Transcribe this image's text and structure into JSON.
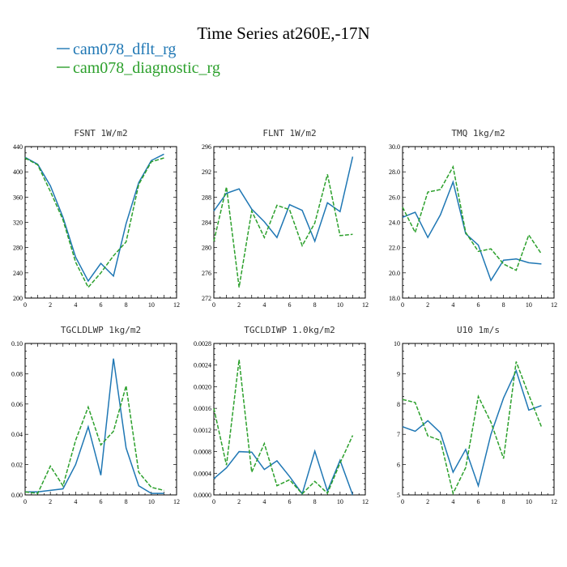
{
  "title": "Time Series at260E,-17N",
  "legend": [
    {
      "label": "cam078_dflt_rg",
      "color": "#1f77b4",
      "dash": "solid"
    },
    {
      "label": "cam078_diagnostic_rg",
      "color": "#2ca02c",
      "dash": "dashed"
    }
  ],
  "chart_data": [
    {
      "type": "line",
      "title": "FSNT  1W/m2",
      "x": [
        0,
        1,
        2,
        3,
        4,
        5,
        6,
        7,
        8,
        9,
        10,
        11
      ],
      "xlim": [
        0,
        12
      ],
      "xticks": [
        0,
        2,
        4,
        6,
        8,
        10,
        12
      ],
      "ylim": [
        200,
        440
      ],
      "yticks": [
        200,
        240,
        280,
        320,
        360,
        400,
        440
      ],
      "ytick_labels": [
        "200",
        "240",
        "280",
        "320",
        "360",
        "400",
        "440"
      ],
      "series": [
        {
          "name": "cam078_dflt_rg",
          "values": [
            423,
            412,
            378,
            328,
            265,
            227,
            255,
            235,
            318,
            383,
            418,
            428
          ]
        },
        {
          "name": "cam078_diagnostic_rg",
          "values": [
            422,
            411,
            369,
            324,
            257,
            217,
            240,
            267,
            289,
            380,
            416,
            422
          ]
        }
      ]
    },
    {
      "type": "line",
      "title": "FLNT  1W/m2",
      "x": [
        0,
        1,
        2,
        3,
        4,
        5,
        6,
        7,
        8,
        9,
        10,
        11
      ],
      "xlim": [
        0,
        12
      ],
      "xticks": [
        0,
        2,
        4,
        6,
        8,
        10,
        12
      ],
      "ylim": [
        272,
        296
      ],
      "yticks": [
        272,
        276,
        280,
        284,
        288,
        292,
        296
      ],
      "ytick_labels": [
        "272",
        "276",
        "280",
        "284",
        "288",
        "292",
        "296"
      ],
      "series": [
        {
          "name": "cam078_dflt_rg",
          "values": [
            285.8,
            288.6,
            289.3,
            286.1,
            284.1,
            281.6,
            286.8,
            285.9,
            281.0,
            287.1,
            285.7,
            294.4
          ]
        },
        {
          "name": "cam078_diagnostic_rg",
          "values": [
            281.0,
            289.6,
            273.7,
            285.8,
            281.6,
            286.7,
            286.0,
            280.3,
            283.9,
            291.6,
            281.9,
            282.1
          ]
        }
      ]
    },
    {
      "type": "line",
      "title": "TMQ  1kg/m2",
      "x": [
        0,
        1,
        2,
        3,
        4,
        5,
        6,
        7,
        8,
        9,
        10,
        11
      ],
      "xlim": [
        0,
        12
      ],
      "xticks": [
        0,
        2,
        4,
        6,
        8,
        10,
        12
      ],
      "ylim": [
        18,
        30
      ],
      "yticks": [
        18,
        20,
        22,
        24,
        26,
        28,
        30
      ],
      "ytick_labels": [
        "18.0",
        "20.0",
        "22.0",
        "24.0",
        "26.0",
        "28.0",
        "30.0"
      ],
      "series": [
        {
          "name": "cam078_dflt_rg",
          "values": [
            24.4,
            24.8,
            22.8,
            24.6,
            27.2,
            23.1,
            22.2,
            19.4,
            21.0,
            21.1,
            20.8,
            20.7
          ]
        },
        {
          "name": "cam078_diagnostic_rg",
          "values": [
            25.2,
            23.2,
            26.4,
            26.6,
            28.4,
            23.2,
            21.7,
            21.9,
            20.7,
            20.2,
            23.0,
            21.5
          ]
        }
      ]
    },
    {
      "type": "line",
      "title": "TGCLDLWP  1kg/m2",
      "x": [
        0,
        1,
        2,
        3,
        4,
        5,
        6,
        7,
        8,
        9,
        10,
        11
      ],
      "xlim": [
        0,
        12
      ],
      "xticks": [
        0,
        2,
        4,
        6,
        8,
        10,
        12
      ],
      "ylim": [
        0,
        0.1
      ],
      "yticks": [
        0,
        0.02,
        0.04,
        0.06,
        0.08,
        0.1
      ],
      "ytick_labels": [
        "0.00",
        "0.02",
        "0.04",
        "0.06",
        "0.08",
        "0.10"
      ],
      "series": [
        {
          "name": "cam078_dflt_rg",
          "values": [
            0.002,
            0.002,
            0.003,
            0.004,
            0.02,
            0.045,
            0.013,
            0.09,
            0.031,
            0.006,
            0.001,
            0.001
          ]
        },
        {
          "name": "cam078_diagnostic_rg",
          "values": [
            0.002,
            0.001,
            0.019,
            0.006,
            0.036,
            0.058,
            0.033,
            0.042,
            0.072,
            0.015,
            0.005,
            0.003
          ]
        }
      ]
    },
    {
      "type": "line",
      "title": "TGCLDIWP  1.0kg/m2",
      "x": [
        0,
        1,
        2,
        3,
        4,
        5,
        6,
        7,
        8,
        9,
        10,
        11
      ],
      "xlim": [
        0,
        12
      ],
      "xticks": [
        0,
        2,
        4,
        6,
        8,
        10,
        12
      ],
      "ylim": [
        0,
        0.0028
      ],
      "yticks": [
        0,
        0.0004,
        0.0008,
        0.0012,
        0.0016,
        0.002,
        0.0024,
        0.0028
      ],
      "ytick_labels": [
        "0.0000",
        "0.0004",
        "0.0008",
        "0.0012",
        "0.0016",
        "0.0020",
        "0.0024",
        "0.0028"
      ],
      "series": [
        {
          "name": "cam078_dflt_rg",
          "values": [
            0.0003,
            0.0005,
            0.0008,
            0.00079,
            0.00047,
            0.00063,
            0.00034,
            2e-05,
            0.00081,
            7e-05,
            0.00064,
            0.0
          ]
        },
        {
          "name": "cam078_diagnostic_rg",
          "values": [
            0.0016,
            0.00055,
            0.0025,
            0.00042,
            0.00095,
            0.00017,
            0.00028,
            2e-05,
            0.00025,
            3e-05,
            0.00059,
            0.0011
          ]
        }
      ]
    },
    {
      "type": "line",
      "title": "U10  1m/s",
      "x": [
        0,
        1,
        2,
        3,
        4,
        5,
        6,
        7,
        8,
        9,
        10,
        11
      ],
      "xlim": [
        0,
        12
      ],
      "xticks": [
        0,
        2,
        4,
        6,
        8,
        10,
        12
      ],
      "ylim": [
        5,
        10
      ],
      "yticks": [
        5,
        6,
        7,
        8,
        9,
        10
      ],
      "ytick_labels": [
        "5",
        "6",
        "7",
        "8",
        "9",
        "10"
      ],
      "series": [
        {
          "name": "cam078_dflt_rg",
          "values": [
            7.25,
            7.1,
            7.45,
            7.05,
            5.75,
            6.5,
            5.3,
            7.0,
            8.2,
            9.1,
            7.8,
            7.95
          ]
        },
        {
          "name": "cam078_diagnostic_rg",
          "values": [
            8.15,
            8.05,
            6.95,
            6.8,
            5.05,
            5.9,
            8.25,
            7.4,
            6.2,
            9.4,
            8.3,
            7.25
          ]
        }
      ]
    }
  ]
}
